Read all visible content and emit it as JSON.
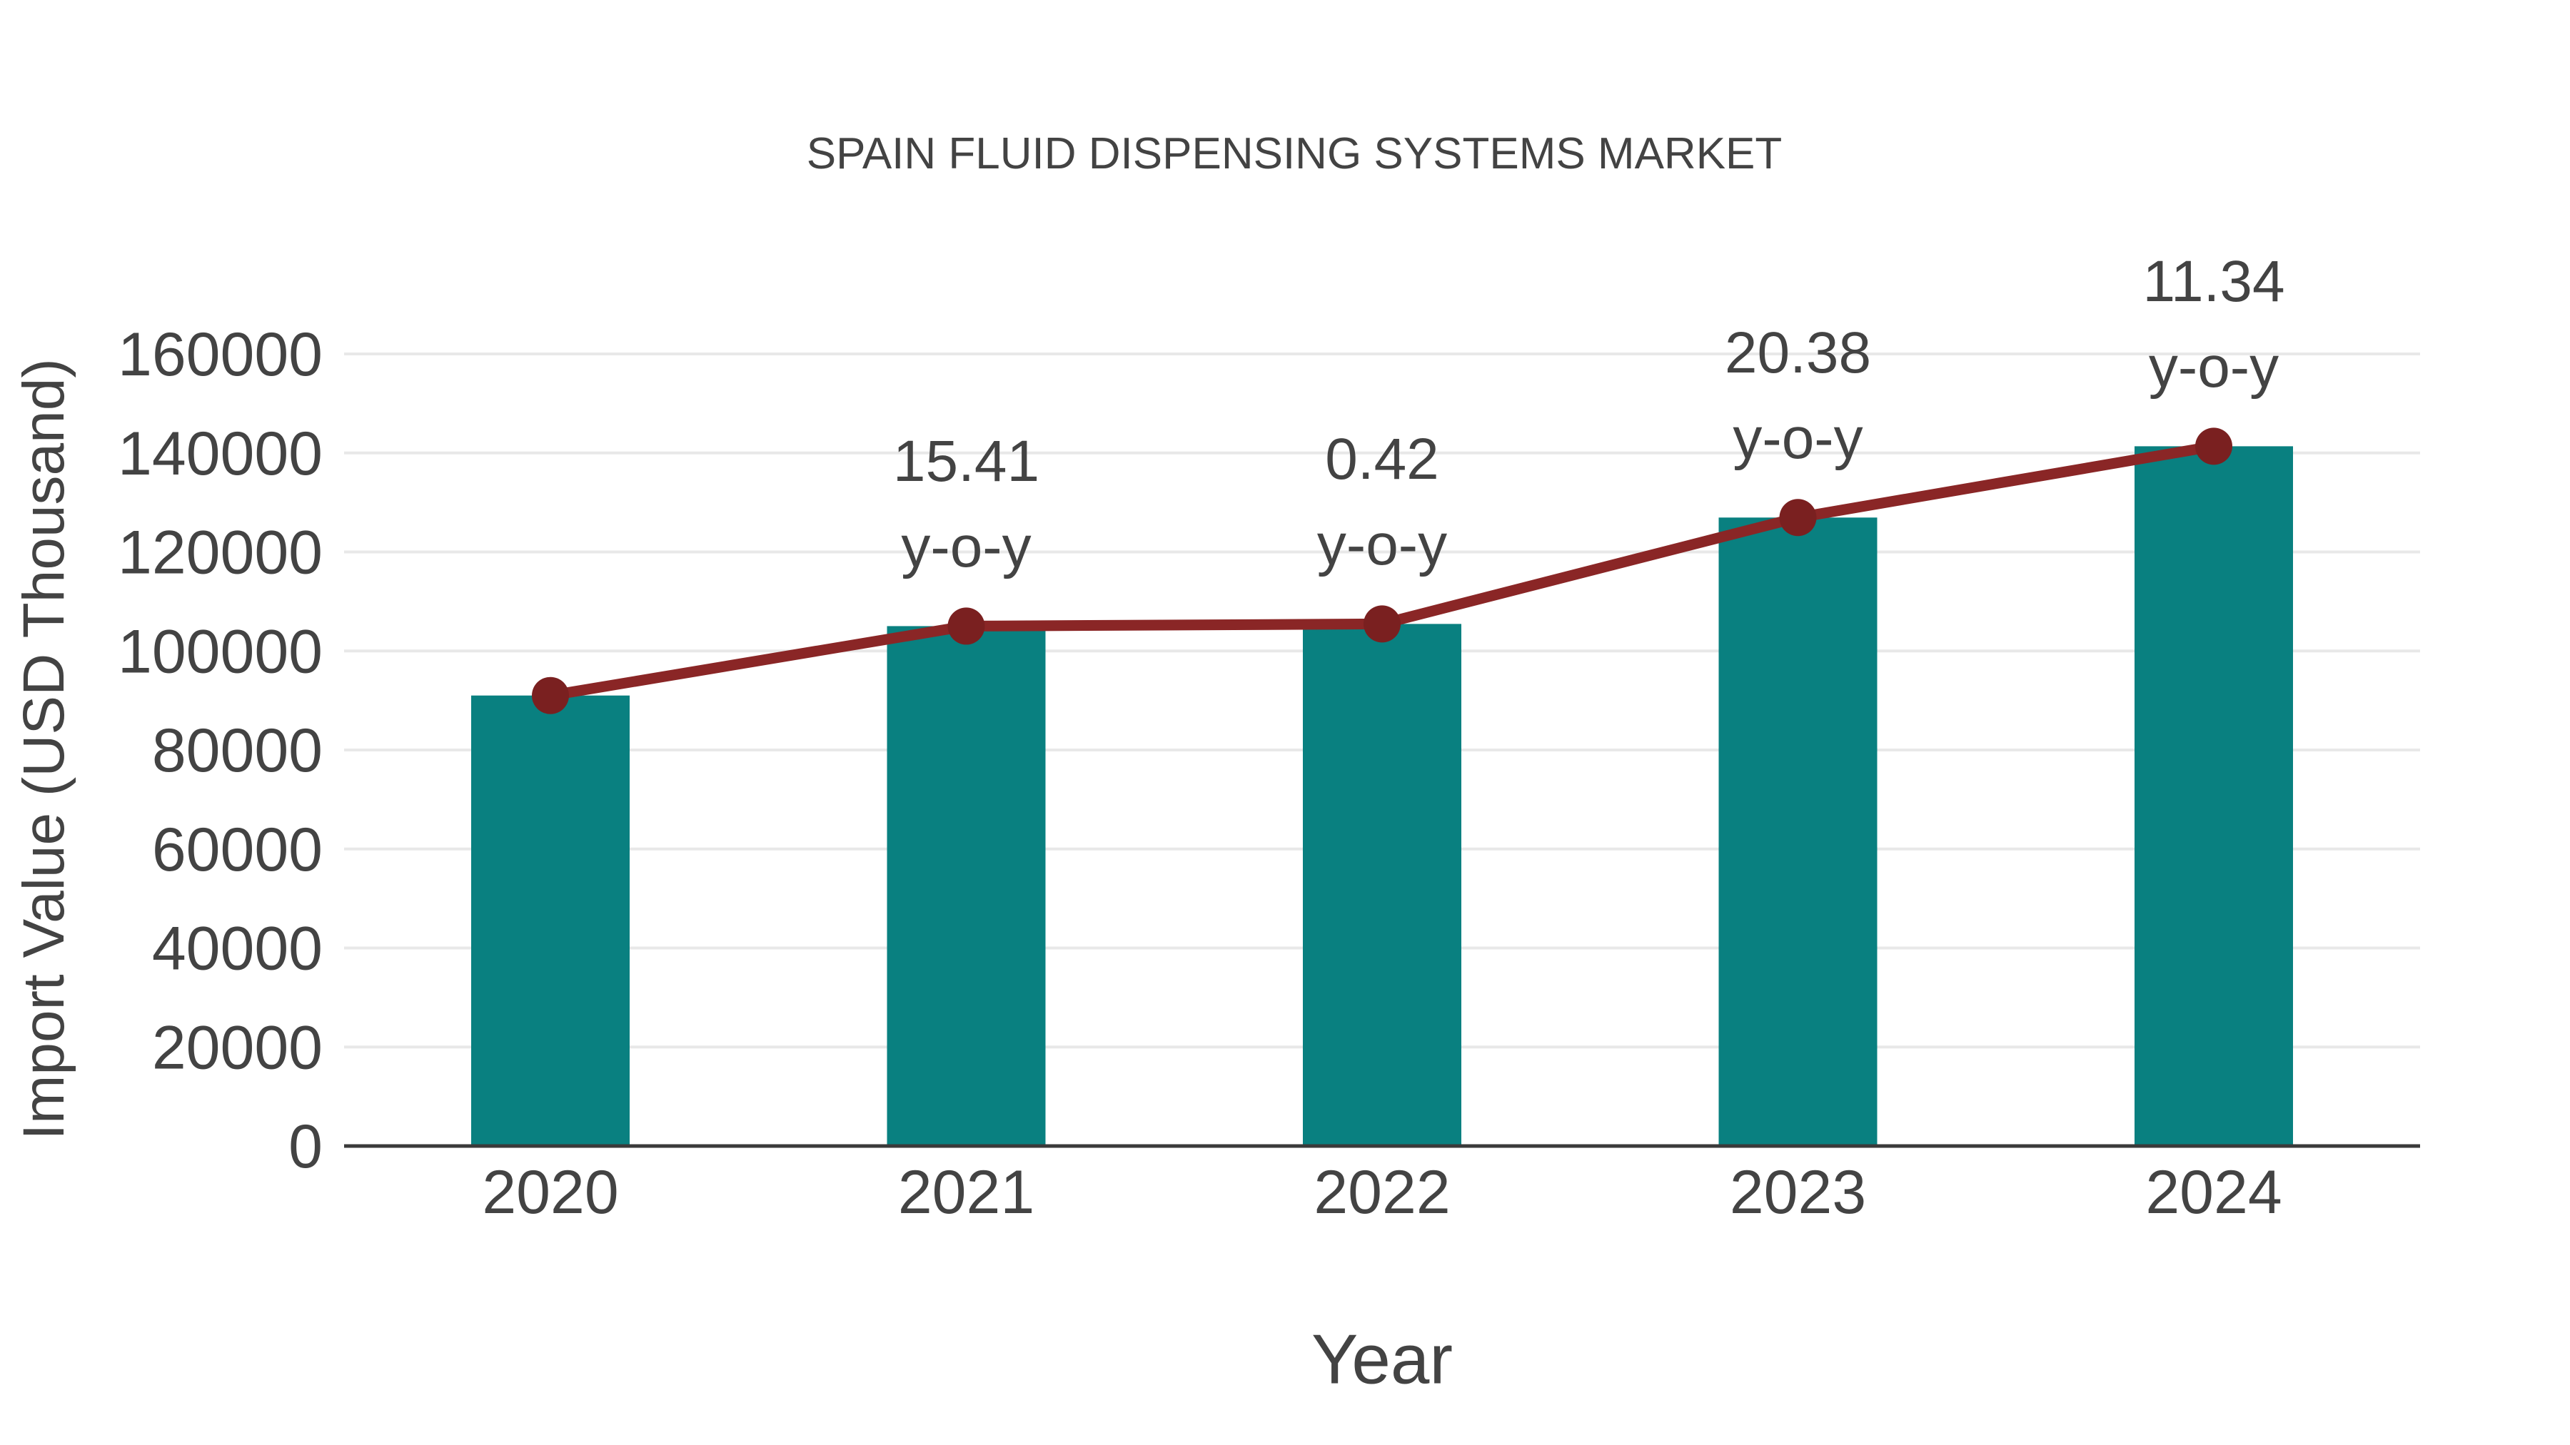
{
  "page": {
    "background": "#ffffff"
  },
  "chart_data": {
    "type": "bar+line",
    "title": "SPAIN FLUID DISPENSING SYSTEMS MARKET",
    "xlabel": "Year",
    "ylabel": "Import Value (USD Thousand)",
    "categories": [
      "2020",
      "2021",
      "2022",
      "2023",
      "2024"
    ],
    "series": [
      {
        "name": "Import Value bars",
        "type": "bar",
        "values": [
          91000,
          105020,
          105460,
          126950,
          141350
        ]
      },
      {
        "name": "Import Value trend line",
        "type": "line",
        "values": [
          91000,
          105020,
          105460,
          126950,
          141350
        ]
      }
    ],
    "yoy_annotations": [
      {
        "category": "2021",
        "value": "15.41",
        "suffix": "y-o-y"
      },
      {
        "category": "2022",
        "value": "0.42",
        "suffix": "y-o-y"
      },
      {
        "category": "2023",
        "value": "20.38",
        "suffix": "y-o-y"
      },
      {
        "category": "2024",
        "value": "11.34",
        "suffix": "y-o-y"
      }
    ],
    "ylim": [
      0,
      160000
    ],
    "yticks": [
      0,
      20000,
      40000,
      60000,
      80000,
      100000,
      120000,
      140000,
      160000
    ],
    "grid": "horizontal",
    "legend": "none",
    "colors": {
      "bar": "#098080",
      "line": "#8a2626",
      "marker": "#7a2020",
      "grid": "#e8e8e8",
      "axis": "#3a3a3a",
      "text": "#434343"
    }
  }
}
